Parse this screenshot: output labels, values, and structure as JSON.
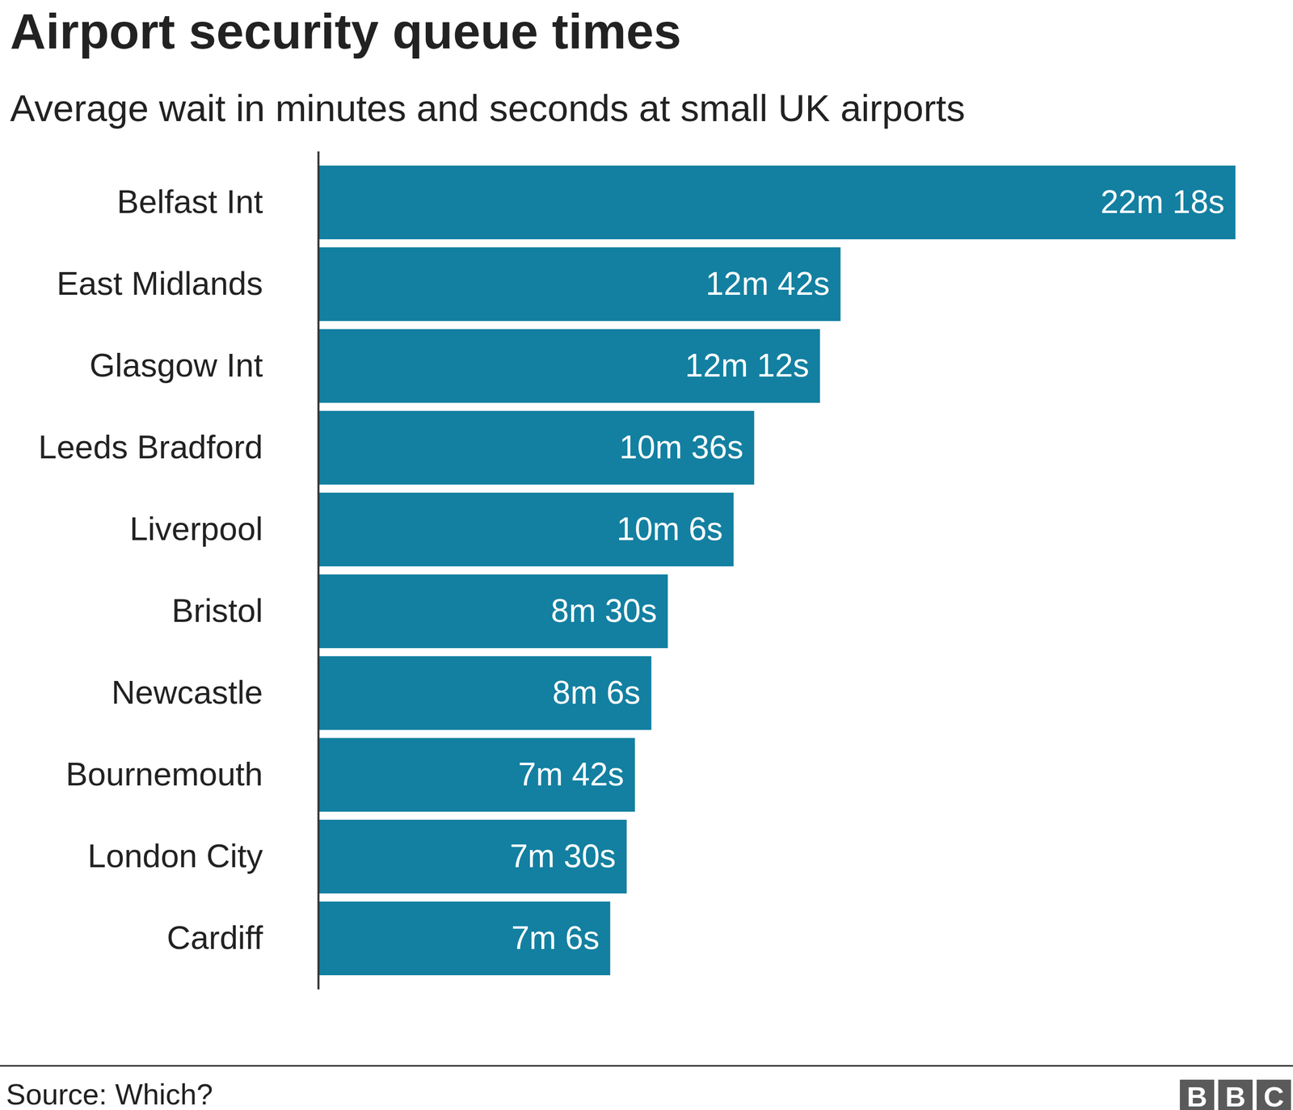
{
  "chart_data": {
    "type": "bar",
    "title": "Airport security queue times",
    "subtitle": "Average wait in minutes and seconds at small UK airports",
    "source": "Source: Which?",
    "logo": "BBC",
    "orientation": "horizontal",
    "categories": [
      "Belfast Int",
      "East Midlands",
      "Glasgow Int",
      "Leeds Bradford",
      "Liverpool",
      "Bristol",
      "Newcastle",
      "Bournemouth",
      "London City",
      "Cardiff"
    ],
    "values": [
      22.3,
      12.7,
      12.2,
      10.6,
      10.1,
      8.5,
      8.1,
      7.7,
      7.5,
      7.1
    ],
    "value_labels": [
      "22m 18s",
      "12m 42s",
      "12m 12s",
      "10m 36s",
      "10m 6s",
      "8m 30s",
      "8m 6s",
      "7m 42s",
      "7m 30s",
      "7m 6s"
    ],
    "color": "#1380a1",
    "xlim": [
      0,
      23.7
    ],
    "data_labels": true,
    "tick_labels": "y",
    "grid": false
  }
}
